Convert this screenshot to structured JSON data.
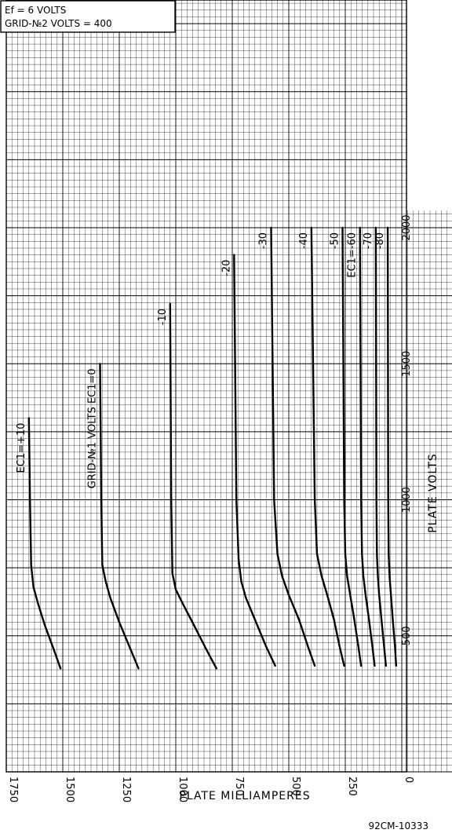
{
  "conditions": {
    "line1": "Ef = 6 VOLTS",
    "line2": "GRID-№2 VOLTS = 400"
  },
  "figure_id": "92CM-10333",
  "chart_data": {
    "type": "line",
    "xlabel": "PLATE MILLIAMPERES",
    "ylabel": "PLATE VOLTS",
    "xlim": [
      1750,
      0
    ],
    "ylim": [
      0,
      2000
    ],
    "x_ticks": [
      "1750",
      "1500",
      "1250",
      "1000",
      "750",
      "500",
      "250",
      "0"
    ],
    "y_ticks": [
      "500",
      "1000",
      "1500",
      "2000"
    ],
    "grid": true,
    "series": [
      {
        "name": "EC1=+10",
        "points": [
          [
            1510,
            380
          ],
          [
            1540,
            450
          ],
          [
            1580,
            540
          ],
          [
            1610,
            620
          ],
          [
            1630,
            680
          ],
          [
            1640,
            760
          ],
          [
            1645,
            1000
          ],
          [
            1650,
            1300
          ]
        ]
      },
      {
        "name": "GRID-№1 VOLTS EC1=0",
        "points": [
          [
            1165,
            380
          ],
          [
            1200,
            450
          ],
          [
            1250,
            550
          ],
          [
            1290,
            640
          ],
          [
            1310,
            700
          ],
          [
            1325,
            760
          ],
          [
            1330,
            1000
          ],
          [
            1335,
            1500
          ]
        ]
      },
      {
        "name": "-10",
        "points": [
          [
            820,
            380
          ],
          [
            865,
            450
          ],
          [
            920,
            540
          ],
          [
            970,
            620
          ],
          [
            1000,
            670
          ],
          [
            1015,
            730
          ],
          [
            1020,
            1000
          ],
          [
            1025,
            1720
          ]
        ]
      },
      {
        "name": "-20",
        "points": [
          [
            560,
            390
          ],
          [
            600,
            460
          ],
          [
            650,
            560
          ],
          [
            690,
            640
          ],
          [
            710,
            700
          ],
          [
            722,
            780
          ],
          [
            732,
            1000
          ],
          [
            742,
            1900
          ]
        ]
      },
      {
        "name": "-30",
        "points": [
          [
            385,
            390
          ],
          [
            415,
            460
          ],
          [
            455,
            560
          ],
          [
            500,
            650
          ],
          [
            530,
            720
          ],
          [
            550,
            800
          ],
          [
            565,
            1000
          ],
          [
            578,
            2000
          ]
        ]
      },
      {
        "name": "-40",
        "points": [
          [
            255,
            390
          ],
          [
            275,
            460
          ],
          [
            300,
            560
          ],
          [
            330,
            650
          ],
          [
            355,
            720
          ],
          [
            375,
            800
          ],
          [
            385,
            1000
          ],
          [
            400,
            2000
          ]
        ]
      },
      {
        "name": "-50",
        "points": [
          [
            180,
            390
          ],
          [
            192,
            460
          ],
          [
            210,
            560
          ],
          [
            228,
            650
          ],
          [
            242,
            720
          ],
          [
            250,
            800
          ],
          [
            255,
            1000
          ],
          [
            262,
            2000
          ]
        ]
      },
      {
        "name": "EC1=-60",
        "points": [
          [
            120,
            390
          ],
          [
            130,
            460
          ],
          [
            145,
            560
          ],
          [
            160,
            650
          ],
          [
            170,
            720
          ],
          [
            176,
            800
          ],
          [
            180,
            1000
          ],
          [
            185,
            2000
          ]
        ]
      },
      {
        "name": "-70",
        "points": [
          [
            70,
            390
          ],
          [
            78,
            460
          ],
          [
            90,
            560
          ],
          [
            100,
            650
          ],
          [
            106,
            720
          ],
          [
            110,
            800
          ],
          [
            112,
            1000
          ],
          [
            115,
            2000
          ]
        ]
      },
      {
        "name": "-80",
        "points": [
          [
            25,
            390
          ],
          [
            30,
            460
          ],
          [
            40,
            560
          ],
          [
            48,
            650
          ],
          [
            54,
            720
          ],
          [
            58,
            800
          ],
          [
            60,
            1000
          ],
          [
            62,
            2000
          ]
        ]
      }
    ],
    "curve_labels": [
      "EC1=+10",
      "GRID-№1 VOLTS  EC1=0",
      "-10",
      "-20",
      "-30",
      "-40",
      "-50",
      "EC1=-60",
      "-70",
      "-80"
    ]
  }
}
